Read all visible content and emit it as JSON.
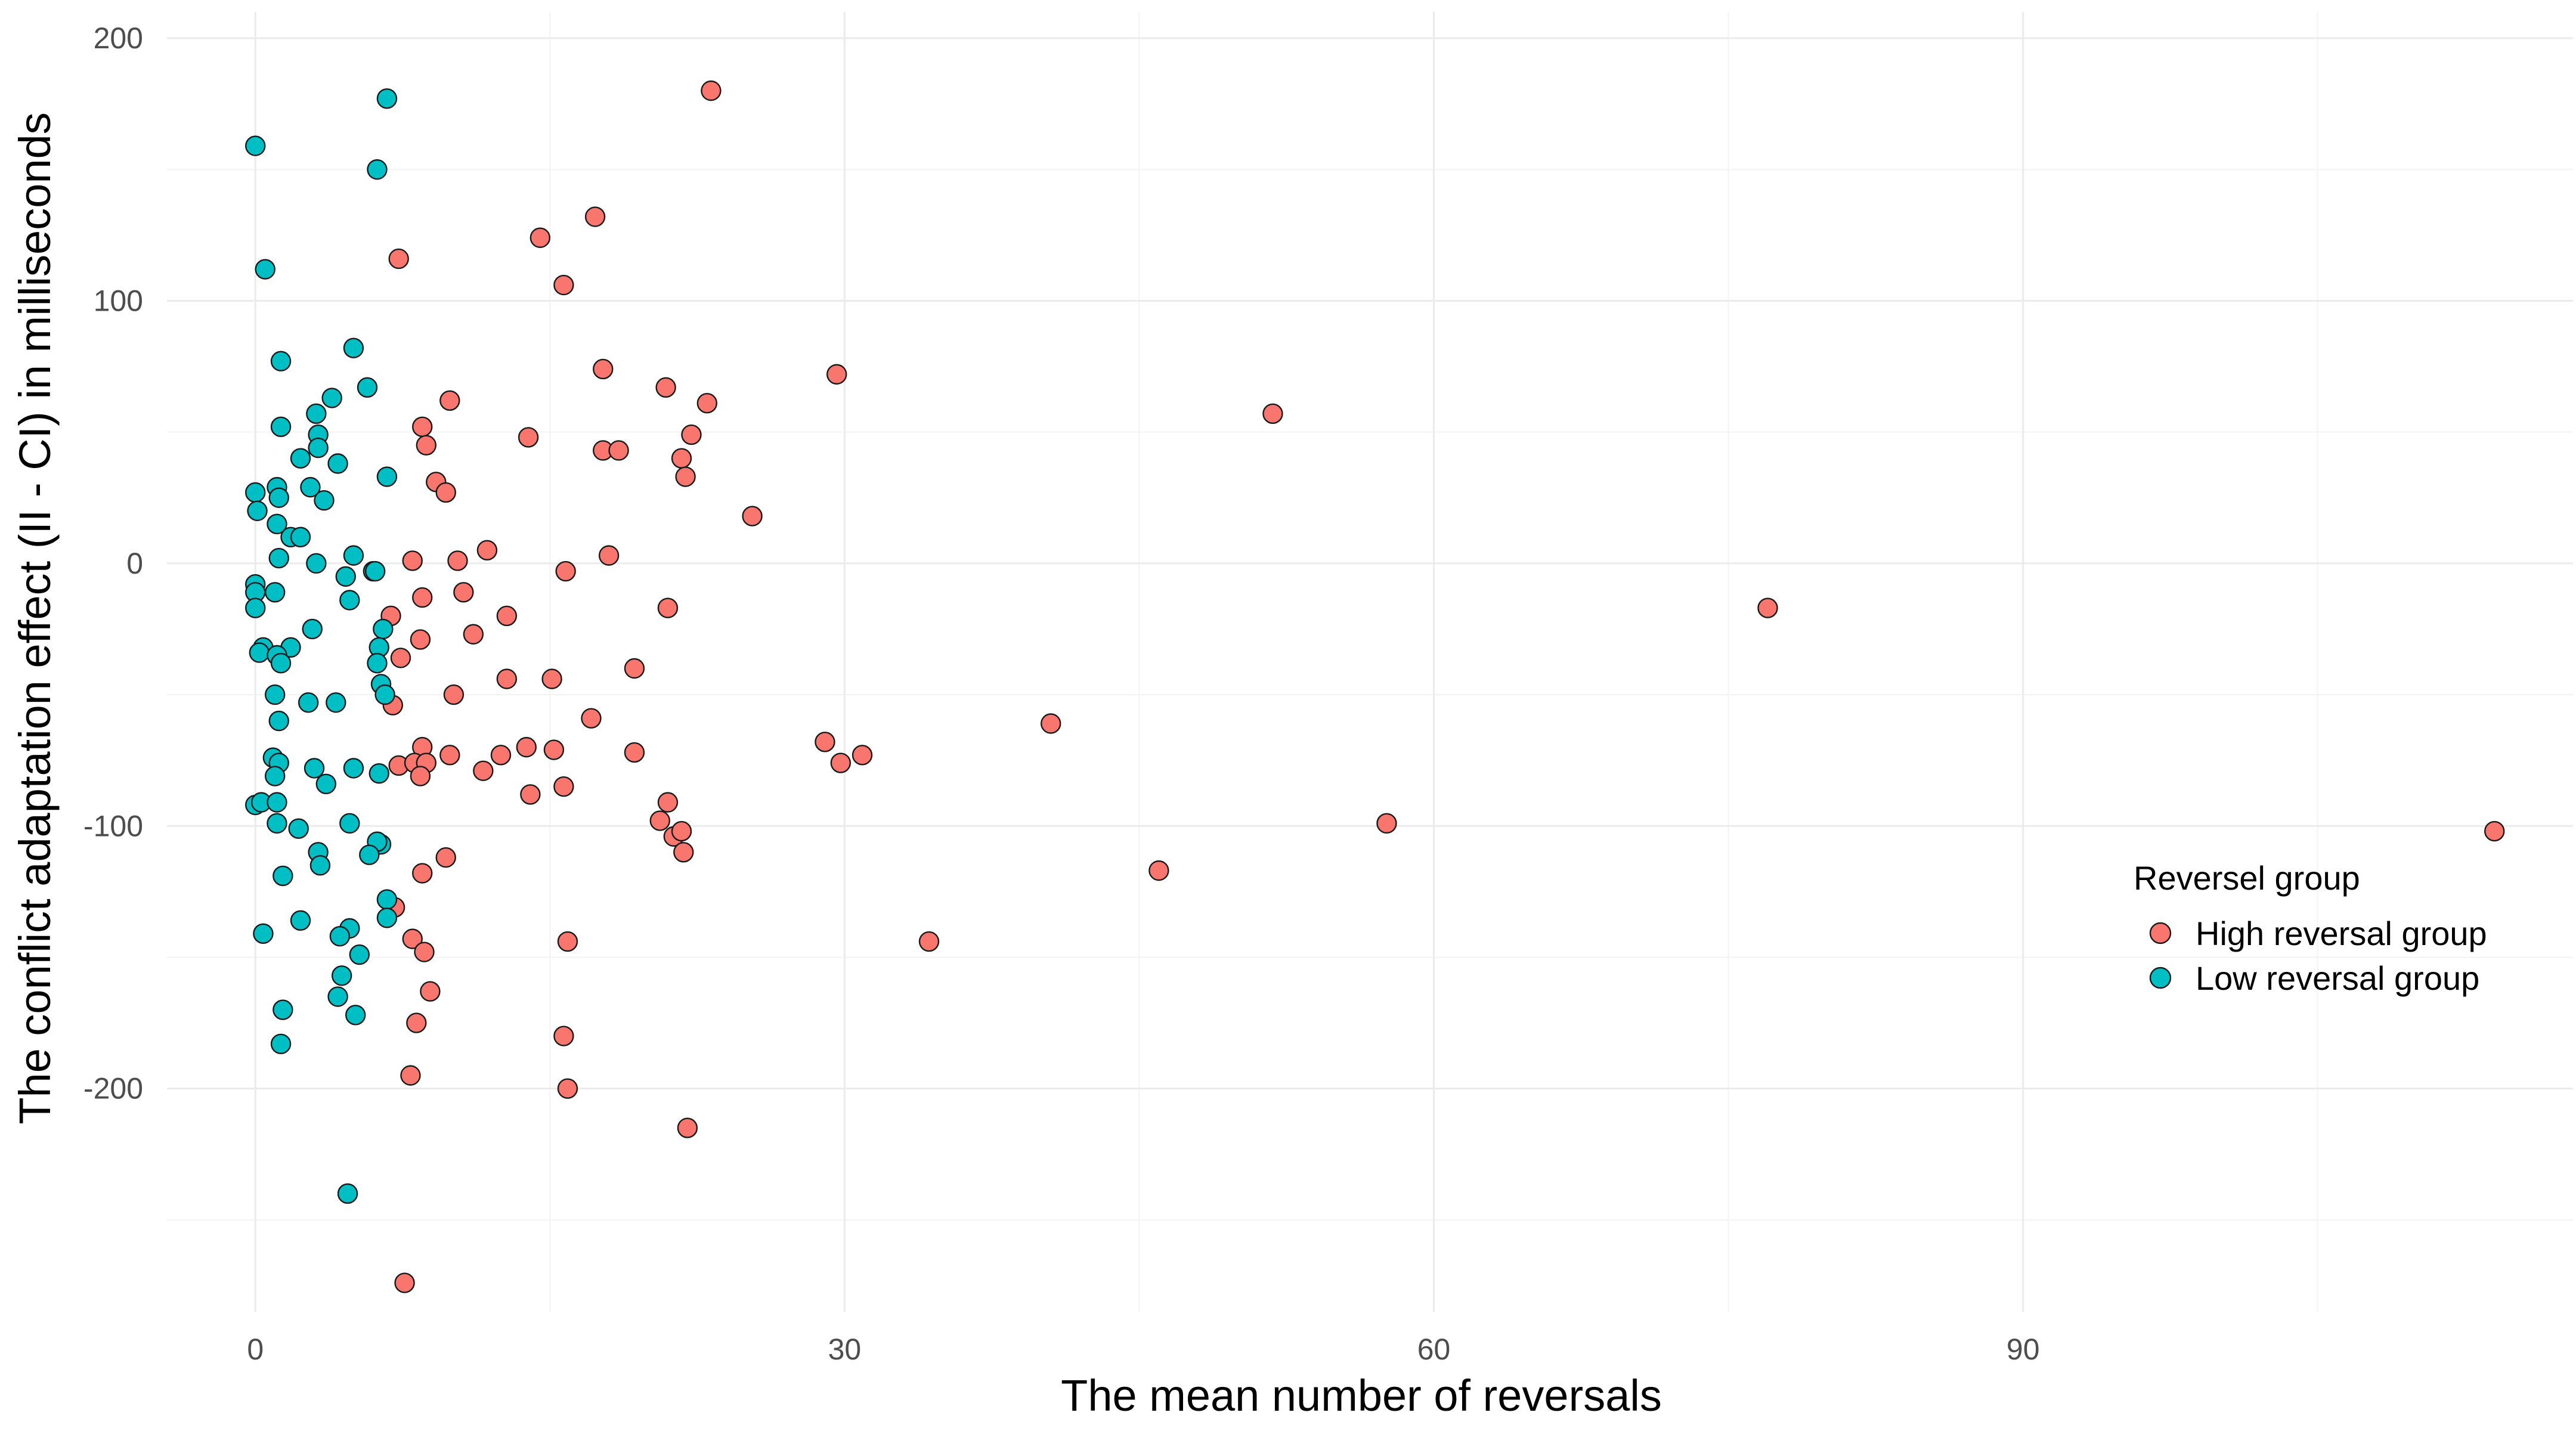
{
  "colors": {
    "high": "#F8766D",
    "low": "#00BFC4",
    "grid_major": "#EBEBEB",
    "grid_minor": "#F3F3F3",
    "point_stroke": "#1A1A1A",
    "tick_text": "#4D4D4D"
  },
  "chart_data": {
    "type": "scatter",
    "title": "",
    "xlabel": "The mean number of reversals",
    "ylabel": "The conflict adaptation effect (II - CI) in milliseconds",
    "xlim": [
      -4.5,
      118
    ],
    "ylim": [
      -285,
      210
    ],
    "x_ticks": [
      0,
      30,
      60,
      90
    ],
    "y_ticks": [
      -200,
      -100,
      0,
      100,
      200
    ],
    "x_tick_labels": [
      "0",
      "30",
      "60",
      "90"
    ],
    "y_tick_labels": [
      "-200",
      "-100",
      "0",
      "100",
      "200"
    ],
    "grid": true,
    "legend": {
      "title": "Reversel group",
      "position": "right"
    },
    "series": [
      {
        "name": "High reversal group",
        "color": "#F8766D",
        "points": [
          [
            23.2,
            180
          ],
          [
            17.3,
            132
          ],
          [
            14.5,
            124
          ],
          [
            7.3,
            116
          ],
          [
            15.7,
            106
          ],
          [
            29.6,
            72
          ],
          [
            17.7,
            74
          ],
          [
            20.9,
            67
          ],
          [
            23.0,
            61
          ],
          [
            9.9,
            62
          ],
          [
            8.5,
            52
          ],
          [
            13.9,
            48
          ],
          [
            22.2,
            49
          ],
          [
            8.7,
            45
          ],
          [
            17.7,
            43
          ],
          [
            18.5,
            43
          ],
          [
            21.7,
            40
          ],
          [
            21.9,
            33
          ],
          [
            9.2,
            31
          ],
          [
            9.7,
            27
          ],
          [
            25.3,
            18
          ],
          [
            51.8,
            57
          ],
          [
            11.8,
            5
          ],
          [
            18.0,
            3
          ],
          [
            8.0,
            1
          ],
          [
            10.3,
            1
          ],
          [
            15.8,
            -3
          ],
          [
            10.6,
            -11
          ],
          [
            8.5,
            -13
          ],
          [
            12.8,
            -20
          ],
          [
            6.9,
            -20
          ],
          [
            21.0,
            -17
          ],
          [
            11.1,
            -27
          ],
          [
            8.4,
            -29
          ],
          [
            7.4,
            -36
          ],
          [
            19.3,
            -40
          ],
          [
            12.8,
            -44
          ],
          [
            15.1,
            -44
          ],
          [
            10.1,
            -50
          ],
          [
            17.1,
            -59
          ],
          [
            7.0,
            -54
          ],
          [
            40.5,
            -61
          ],
          [
            29.0,
            -68
          ],
          [
            13.8,
            -70
          ],
          [
            15.2,
            -71
          ],
          [
            8.5,
            -70
          ],
          [
            9.9,
            -73
          ],
          [
            12.5,
            -73
          ],
          [
            19.3,
            -72
          ],
          [
            30.9,
            -73
          ],
          [
            29.8,
            -76
          ],
          [
            7.3,
            -77
          ],
          [
            8.1,
            -76
          ],
          [
            8.7,
            -76
          ],
          [
            8.4,
            -81
          ],
          [
            11.6,
            -79
          ],
          [
            14.0,
            -88
          ],
          [
            15.7,
            -85
          ],
          [
            21.0,
            -91
          ],
          [
            20.6,
            -98
          ],
          [
            21.3,
            -104
          ],
          [
            21.7,
            -102
          ],
          [
            21.8,
            -110
          ],
          [
            9.7,
            -112
          ],
          [
            8.5,
            -118
          ],
          [
            57.6,
            -99
          ],
          [
            46.0,
            -117
          ],
          [
            7.1,
            -131
          ],
          [
            8.0,
            -143
          ],
          [
            34.3,
            -144
          ],
          [
            15.9,
            -144
          ],
          [
            8.6,
            -148
          ],
          [
            8.9,
            -163
          ],
          [
            8.2,
            -175
          ],
          [
            15.7,
            -180
          ],
          [
            7.9,
            -195
          ],
          [
            15.9,
            -200
          ],
          [
            22.0,
            -215
          ],
          [
            7.6,
            -274
          ],
          [
            77.0,
            -17
          ],
          [
            114.0,
            -102
          ]
        ]
      },
      {
        "name": "Low reversal group",
        "color": "#00BFC4",
        "points": [
          [
            6.7,
            177
          ],
          [
            0.0,
            159
          ],
          [
            6.2,
            150
          ],
          [
            0.5,
            112
          ],
          [
            5.0,
            82
          ],
          [
            1.3,
            77
          ],
          [
            5.7,
            67
          ],
          [
            3.9,
            63
          ],
          [
            3.1,
            57
          ],
          [
            3.2,
            49
          ],
          [
            1.3,
            52
          ],
          [
            2.3,
            40
          ],
          [
            3.2,
            44
          ],
          [
            4.2,
            38
          ],
          [
            6.7,
            33
          ],
          [
            2.8,
            29
          ],
          [
            1.1,
            29
          ],
          [
            0.0,
            27
          ],
          [
            1.2,
            25
          ],
          [
            3.5,
            24
          ],
          [
            0.1,
            20
          ],
          [
            1.1,
            15
          ],
          [
            1.8,
            10
          ],
          [
            2.3,
            10
          ],
          [
            5.0,
            3
          ],
          [
            1.2,
            2
          ],
          [
            3.1,
            0
          ],
          [
            6.0,
            -3
          ],
          [
            6.1,
            -3
          ],
          [
            4.6,
            -5
          ],
          [
            0.0,
            -8
          ],
          [
            0.0,
            -11
          ],
          [
            1.0,
            -11
          ],
          [
            4.8,
            -14
          ],
          [
            0.0,
            -17
          ],
          [
            2.9,
            -25
          ],
          [
            6.5,
            -25
          ],
          [
            0.4,
            -32
          ],
          [
            1.8,
            -32
          ],
          [
            0.2,
            -34
          ],
          [
            6.3,
            -32
          ],
          [
            1.1,
            -35
          ],
          [
            1.3,
            -38
          ],
          [
            6.2,
            -38
          ],
          [
            6.4,
            -46
          ],
          [
            1.0,
            -50
          ],
          [
            6.6,
            -50
          ],
          [
            2.7,
            -53
          ],
          [
            4.1,
            -53
          ],
          [
            1.2,
            -60
          ],
          [
            0.9,
            -74
          ],
          [
            1.2,
            -76
          ],
          [
            3.0,
            -78
          ],
          [
            5.0,
            -78
          ],
          [
            6.3,
            -80
          ],
          [
            1.0,
            -81
          ],
          [
            3.6,
            -84
          ],
          [
            0.0,
            -92
          ],
          [
            0.3,
            -91
          ],
          [
            1.1,
            -91
          ],
          [
            1.1,
            -99
          ],
          [
            2.2,
            -101
          ],
          [
            4.8,
            -99
          ],
          [
            6.4,
            -107
          ],
          [
            6.2,
            -106
          ],
          [
            3.2,
            -110
          ],
          [
            5.8,
            -111
          ],
          [
            3.3,
            -115
          ],
          [
            1.4,
            -119
          ],
          [
            6.7,
            -128
          ],
          [
            6.7,
            -135
          ],
          [
            2.3,
            -136
          ],
          [
            4.8,
            -139
          ],
          [
            4.3,
            -142
          ],
          [
            0.4,
            -141
          ],
          [
            5.3,
            -149
          ],
          [
            4.4,
            -157
          ],
          [
            4.2,
            -165
          ],
          [
            1.4,
            -170
          ],
          [
            5.1,
            -172
          ],
          [
            1.3,
            -183
          ],
          [
            4.7,
            -240
          ]
        ]
      }
    ]
  }
}
